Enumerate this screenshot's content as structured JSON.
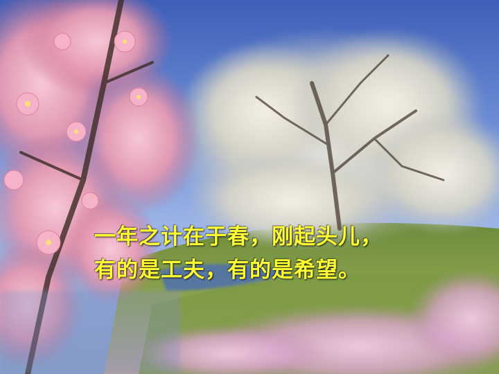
{
  "slide": {
    "caption_lines": [
      "一年之计在于春，刚起头儿，",
      "有的是工夫，有的是希望。"
    ],
    "caption_color": "#ffff33",
    "background_image": "spring-blossom-tree-meadow"
  }
}
